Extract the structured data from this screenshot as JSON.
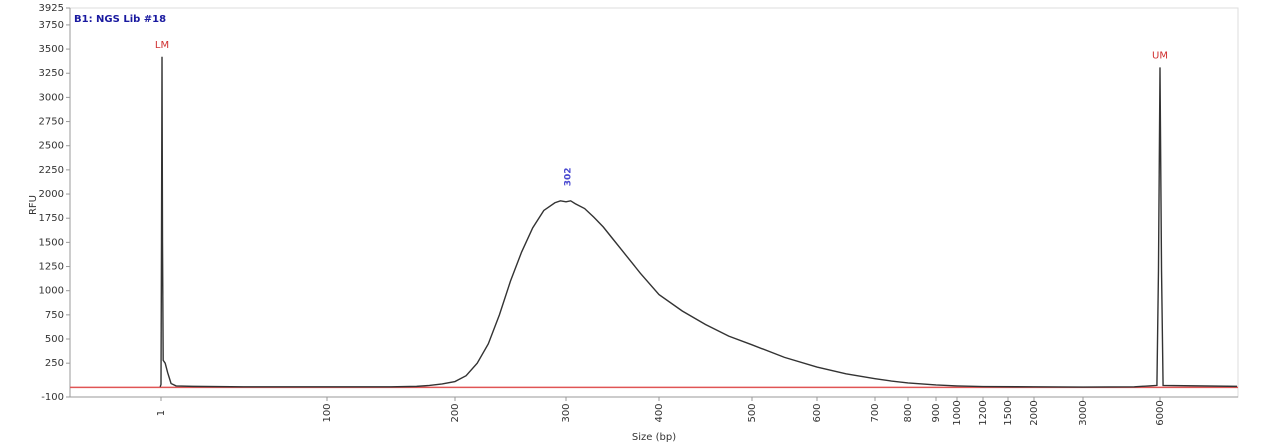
{
  "chart_data": {
    "type": "line",
    "title": "B1: NGS Lib #18",
    "xlabel": "Size (bp)",
    "ylabel": "RFU",
    "x": [
      0.5,
      1,
      1.3,
      1.6,
      1.9,
      2.3,
      3.5,
      5,
      7,
      10,
      20,
      50,
      100,
      150,
      170,
      180,
      190,
      200,
      210,
      220,
      230,
      240,
      250,
      260,
      270,
      280,
      290,
      295,
      300,
      305,
      310,
      320,
      330,
      340,
      350,
      360,
      380,
      400,
      425,
      450,
      475,
      500,
      550,
      600,
      650,
      700,
      750,
      800,
      900,
      1000,
      1200,
      2000,
      3000,
      5000,
      5880,
      5940,
      6000,
      6060,
      6120,
      9000
    ],
    "values": [
      5,
      30,
      1500,
      3420,
      1500,
      280,
      250,
      150,
      40,
      15,
      10,
      5,
      5,
      5,
      10,
      20,
      35,
      60,
      120,
      250,
      450,
      750,
      1100,
      1400,
      1650,
      1830,
      1910,
      1930,
      1920,
      1930,
      1900,
      1850,
      1760,
      1660,
      1540,
      1420,
      1180,
      960,
      790,
      650,
      530,
      440,
      310,
      210,
      140,
      90,
      65,
      45,
      25,
      15,
      8,
      5,
      3,
      5,
      20,
      1200,
      3310,
      1200,
      20,
      10
    ],
    "color": "#333333",
    "baseline_color": "#e05555",
    "ylim": [
      -100,
      3925
    ],
    "yticks": [
      -100,
      250,
      500,
      750,
      1000,
      1250,
      1500,
      1750,
      2000,
      2250,
      2500,
      2750,
      3000,
      3250,
      3500,
      3750,
      3925
    ],
    "xticks": [
      1,
      100,
      200,
      300,
      400,
      500,
      600,
      700,
      800,
      900,
      1000,
      1200,
      1500,
      2000,
      3000,
      6000
    ],
    "annotations": [
      {
        "text": "LM",
        "x": 1.6,
        "y": 3420,
        "color": "#d03030"
      },
      {
        "text": "302",
        "x": 302,
        "y": 1930,
        "color": "#4a4ad0"
      },
      {
        "text": "UM",
        "x": 6000,
        "y": 3310,
        "color": "#d03030"
      }
    ]
  }
}
